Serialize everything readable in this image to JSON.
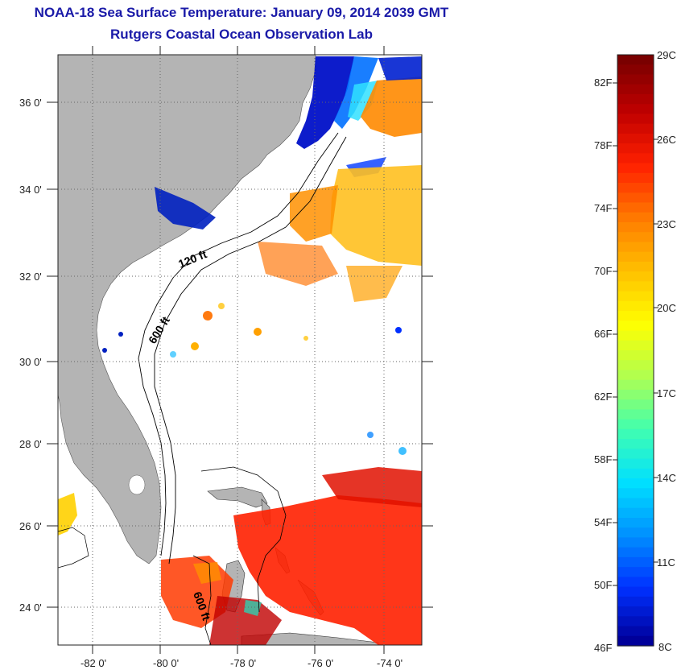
{
  "title": {
    "line1": "NOAA-18 Sea Surface Temperature:  January 09, 2014 2039 GMT",
    "line2": "Rutgers Coastal Ocean Observation Lab"
  },
  "map": {
    "lat_ticks": [
      "36 0'",
      "34 0'",
      "32 0'",
      "30 0'",
      "28 0'",
      "26 0'",
      "24 0'"
    ],
    "lon_ticks": [
      "-82 0'",
      "-80 0'",
      "-78 0'",
      "-76 0'",
      "-74 0'"
    ],
    "contour_labels": [
      "120 ft",
      "600 ft",
      "600 ft"
    ],
    "land_color": "#b4b4b4"
  },
  "colorbar": {
    "fahrenheit_labels": [
      "82F",
      "78F",
      "74F",
      "70F",
      "66F",
      "62F",
      "58F",
      "54F",
      "50F",
      "46F"
    ],
    "celsius_labels": [
      "29C",
      "26C",
      "23C",
      "20C",
      "17C",
      "14C",
      "11C",
      "8C"
    ],
    "colors": [
      "#7a0000",
      "#c00000",
      "#ff2000",
      "#ff7a00",
      "#ffc000",
      "#ffff00",
      "#b0ff50",
      "#40ffb0",
      "#00e0ff",
      "#0090ff",
      "#0030ff",
      "#00009a"
    ]
  }
}
